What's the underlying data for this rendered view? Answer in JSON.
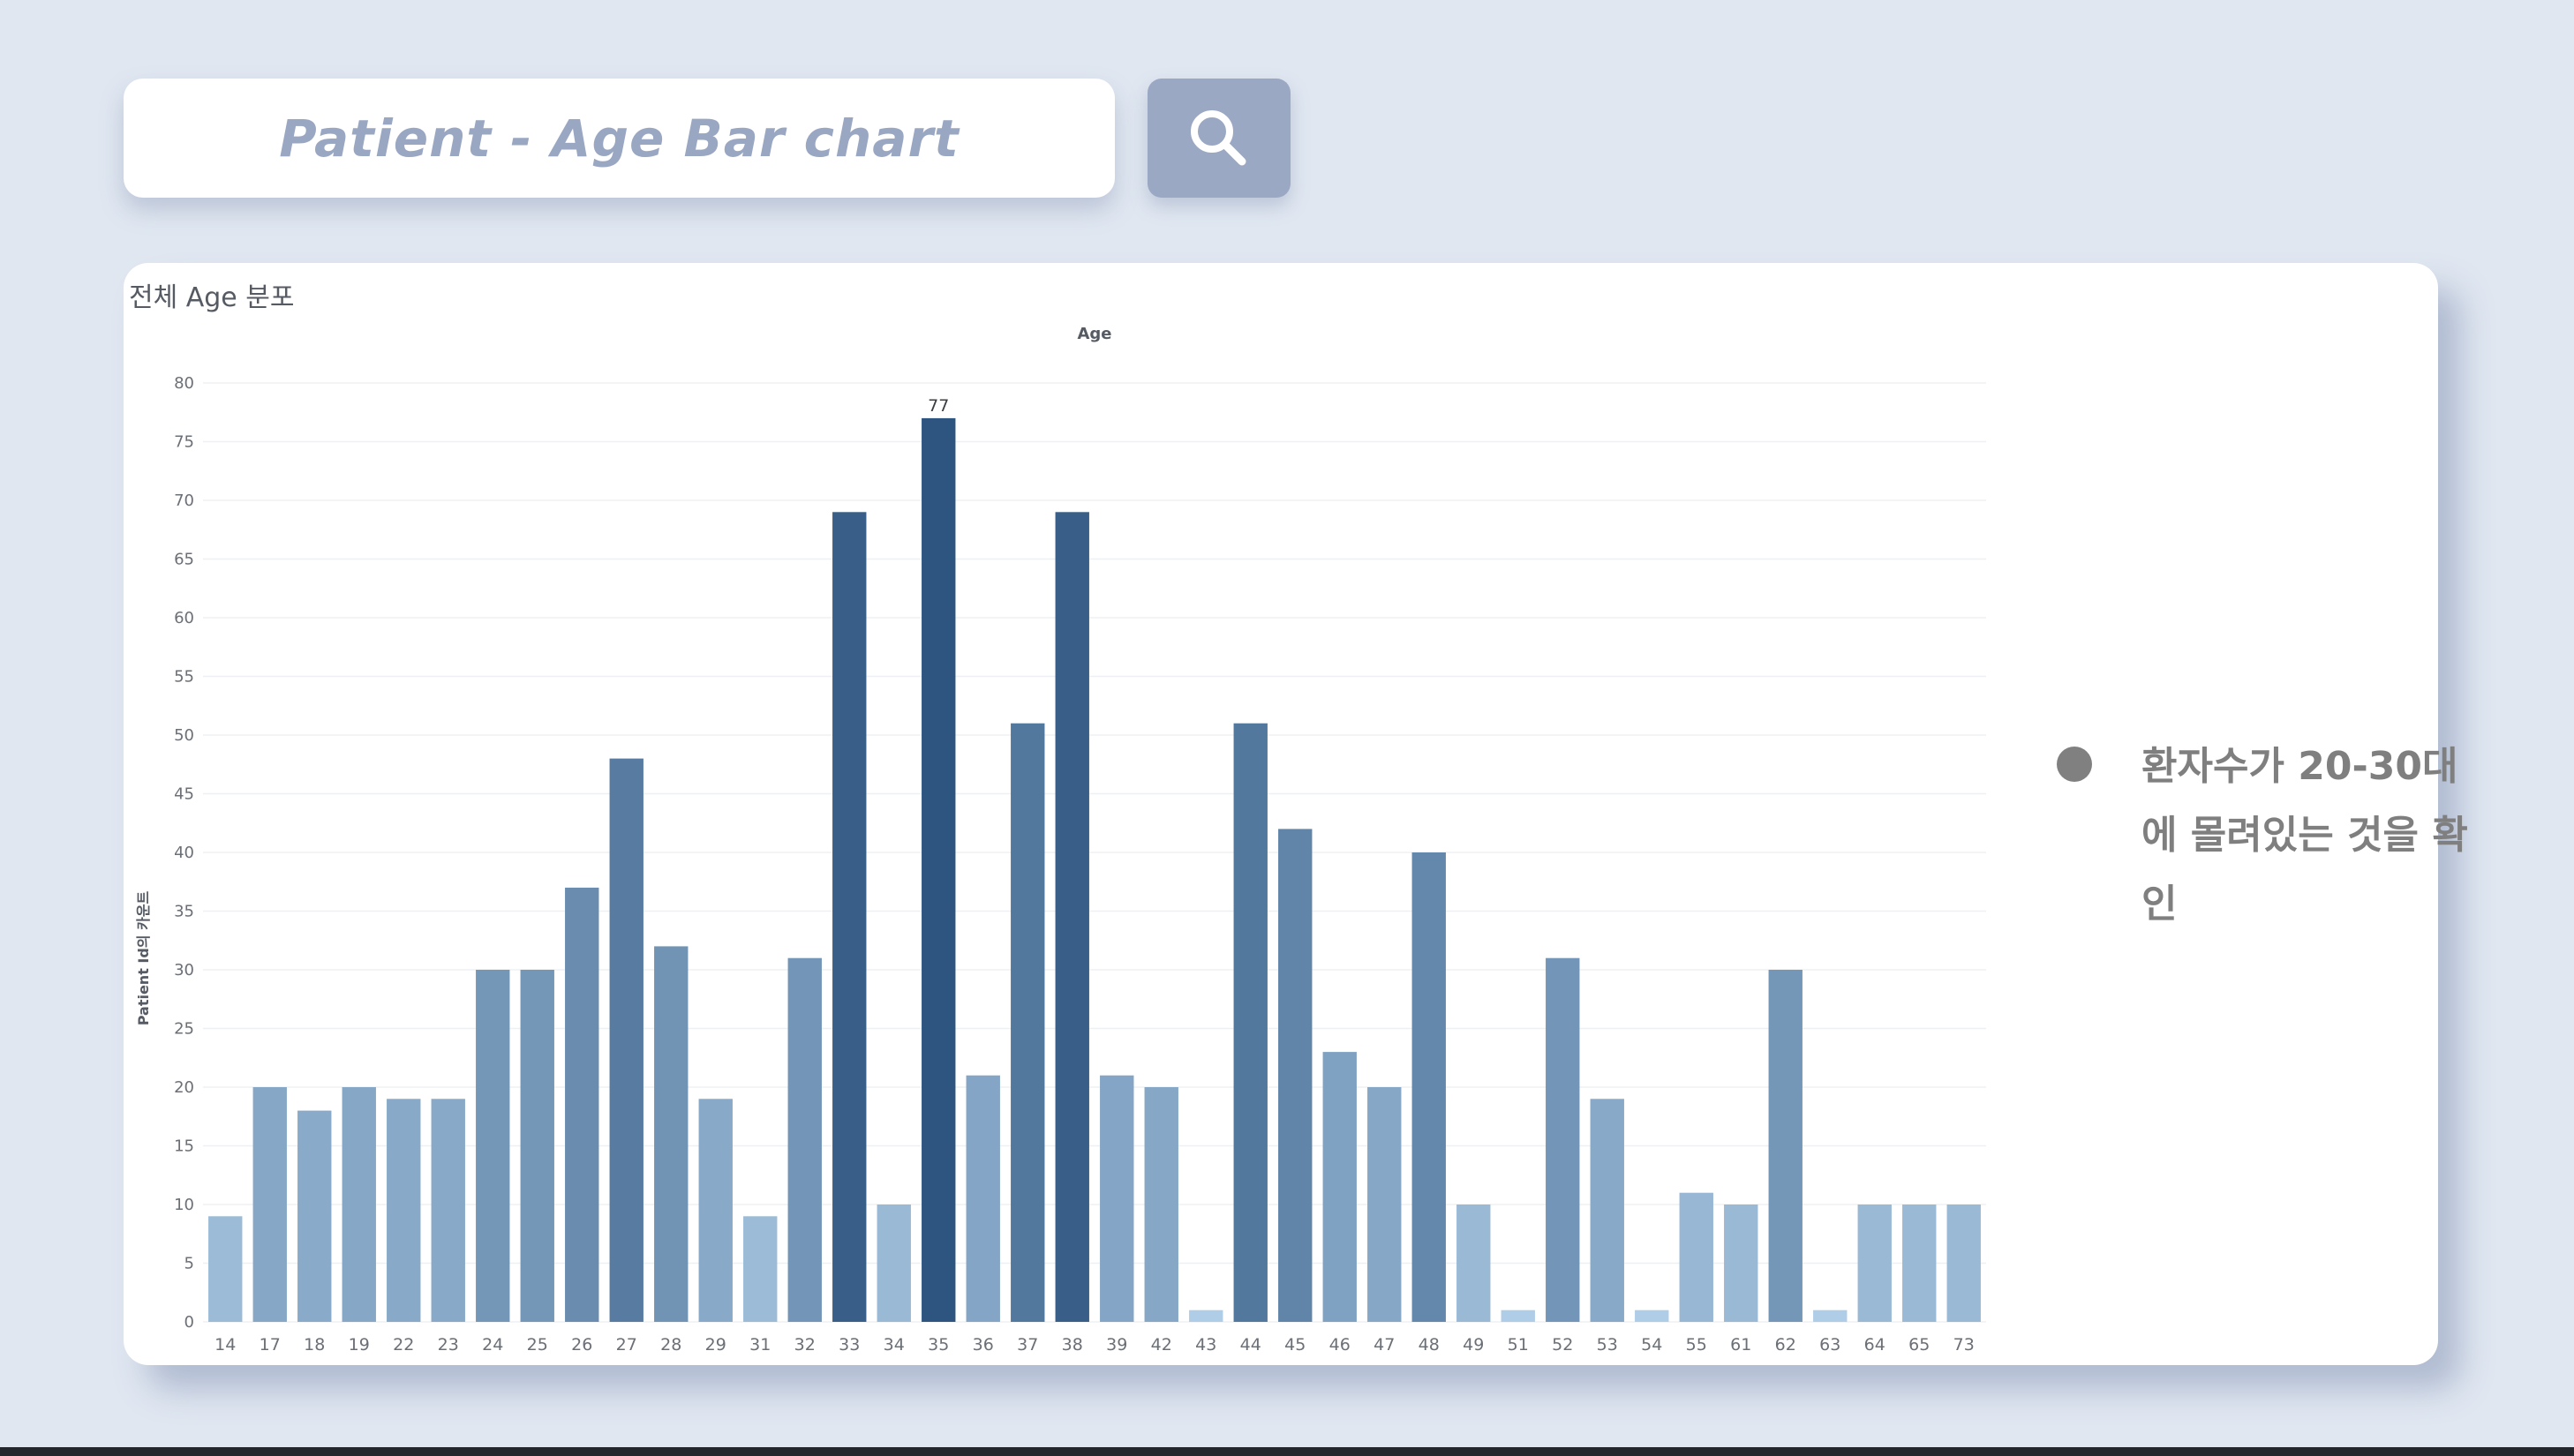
{
  "search": {
    "title": "Patient - Age Bar chart",
    "icon": "search-icon"
  },
  "card": {
    "title": "전체 Age 분포"
  },
  "note": {
    "text": "환자수가 20-30대에 몰려있는 것을 확인"
  },
  "chart_data": {
    "type": "bar",
    "title": "Age",
    "xlabel": "",
    "ylabel": "Patient Id의 카운트",
    "ylim": [
      0,
      80
    ],
    "yticks": [
      0,
      5,
      10,
      15,
      20,
      25,
      30,
      35,
      40,
      45,
      50,
      55,
      60,
      65,
      70,
      75,
      80
    ],
    "categories": [
      "14",
      "17",
      "18",
      "19",
      "22",
      "23",
      "24",
      "25",
      "26",
      "27",
      "28",
      "29",
      "31",
      "32",
      "33",
      "34",
      "35",
      "36",
      "37",
      "38",
      "39",
      "42",
      "43",
      "44",
      "45",
      "46",
      "47",
      "48",
      "49",
      "51",
      "52",
      "53",
      "54",
      "55",
      "61",
      "62",
      "63",
      "64",
      "65",
      "73"
    ],
    "values": [
      9,
      20,
      18,
      20,
      19,
      19,
      30,
      30,
      37,
      48,
      32,
      19,
      9,
      31,
      69,
      10,
      77,
      21,
      51,
      69,
      21,
      20,
      1,
      51,
      42,
      23,
      20,
      40,
      10,
      1,
      31,
      19,
      1,
      11,
      10,
      30,
      1,
      10,
      10,
      10
    ],
    "annotations": [
      {
        "category": "35",
        "label": "77"
      }
    ],
    "color_scale": {
      "low": "#b3d1ea",
      "high": "#2e5580"
    },
    "grid": true
  }
}
